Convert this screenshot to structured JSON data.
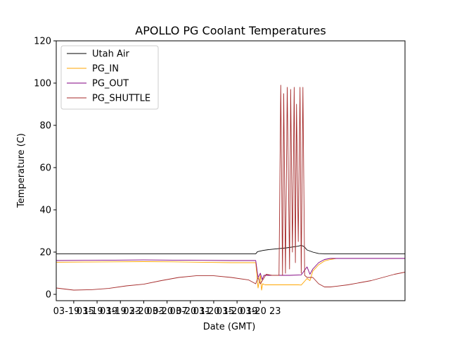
{
  "chart_data": {
    "type": "line",
    "title": "APOLLO PG Coolant Temperatures",
    "xlabel": "Date (GMT)",
    "ylabel": "Temperature (C)",
    "ylim": [
      -3,
      120
    ],
    "xlim_hours": [
      0,
      59.8
    ],
    "x_unit": "hours since 2018-03-19 12:00 GMT",
    "y_ticks": [
      0,
      20,
      40,
      60,
      80,
      100,
      120
    ],
    "x_ticks": [
      {
        "hour": 3,
        "label": "03-19 15"
      },
      {
        "hour": 7,
        "label": "03-19 19"
      },
      {
        "hour": 11,
        "label": "03-19 23"
      },
      {
        "hour": 15,
        "label": "03-20 03"
      },
      {
        "hour": 19,
        "label": "03-20 07"
      },
      {
        "hour": 23,
        "label": "03-20 11"
      },
      {
        "hour": 27,
        "label": "03-20 15"
      },
      {
        "hour": 31,
        "label": "03-20 19"
      },
      {
        "hour": 35,
        "label": "03-20 23"
      }
    ],
    "legend_position": "upper-left",
    "series": [
      {
        "name": "Utah Air",
        "color": "#000000",
        "x": [
          0,
          5,
          10,
          15,
          20,
          34.2,
          34.5,
          35.5,
          36.5,
          38,
          39.5,
          40.5,
          41.5,
          42,
          42.5,
          43,
          44,
          45,
          46,
          48,
          52,
          56,
          59.8
        ],
        "y": [
          19.2,
          19.2,
          19.2,
          19.2,
          19.2,
          19.2,
          20.2,
          20.8,
          21.2,
          21.6,
          22.0,
          22.4,
          22.8,
          23.2,
          22.6,
          21.0,
          20.0,
          19.3,
          19.2,
          19.2,
          19.2,
          19.2,
          19.2
        ]
      },
      {
        "name": "PG_IN",
        "color": "#ffa500",
        "x": [
          0,
          5,
          10,
          15,
          20,
          25,
          30,
          34.2,
          34.6,
          35.0,
          35.2,
          35.4,
          35.8,
          37,
          39,
          40.5,
          41.5,
          42,
          43,
          43.5,
          44,
          45,
          46,
          47,
          48,
          52,
          56,
          59.8
        ],
        "y": [
          15.2,
          15.3,
          15.4,
          15.5,
          15.4,
          15.2,
          15.0,
          15.0,
          3.0,
          9.0,
          2.0,
          5.0,
          4.5,
          4.5,
          4.5,
          4.5,
          4.5,
          4.4,
          7.5,
          6.5,
          11.0,
          14.0,
          15.8,
          16.5,
          17.0,
          17.0,
          17.0,
          17.0
        ]
      },
      {
        "name": "PG_OUT",
        "color": "#800080",
        "x": [
          0,
          5,
          10,
          15,
          20,
          25,
          30,
          34.2,
          34.6,
          35.0,
          35.3,
          35.6,
          36,
          38,
          40,
          42,
          43,
          43.5,
          44,
          45,
          46,
          47,
          48,
          52,
          56,
          59.8
        ],
        "y": [
          16.0,
          16.1,
          16.2,
          16.3,
          16.2,
          16.1,
          16.0,
          16.0,
          8.0,
          10.0,
          7.0,
          9.0,
          9.0,
          9.0,
          9.0,
          9.2,
          13.0,
          9.5,
          12.0,
          15.0,
          16.5,
          17.0,
          17.0,
          17.0,
          17.0,
          17.0
        ]
      },
      {
        "name": "PG_SHUTTLE",
        "color": "#a52a2a",
        "x": [
          0,
          3,
          6,
          9,
          12,
          15,
          18,
          21,
          24,
          27,
          30,
          33,
          34.2,
          34.6,
          35,
          36,
          37,
          38,
          38.2,
          38.5,
          38.8,
          39.0,
          39.3,
          39.6,
          40.0,
          40.2,
          40.5,
          40.8,
          41.0,
          41.2,
          41.5,
          41.8,
          42.0,
          42.3,
          42.6,
          43,
          44,
          45,
          46,
          47,
          48,
          50,
          52,
          54,
          56,
          58,
          59.8
        ],
        "y": [
          3.0,
          2.0,
          2.2,
          2.8,
          4.0,
          4.8,
          6.5,
          8.0,
          8.8,
          8.8,
          8.0,
          6.8,
          5.0,
          8.0,
          5.0,
          9.5,
          9.0,
          9.0,
          9.0,
          99.0,
          9.0,
          95.0,
          10.0,
          98.0,
          12.0,
          97.0,
          20.0,
          98.0,
          15.0,
          90.0,
          25.0,
          98.0,
          10.0,
          98.0,
          9.0,
          8.0,
          8.0,
          5.0,
          3.5,
          3.5,
          3.8,
          4.5,
          5.5,
          6.5,
          8.0,
          9.5,
          10.5
        ]
      }
    ]
  }
}
